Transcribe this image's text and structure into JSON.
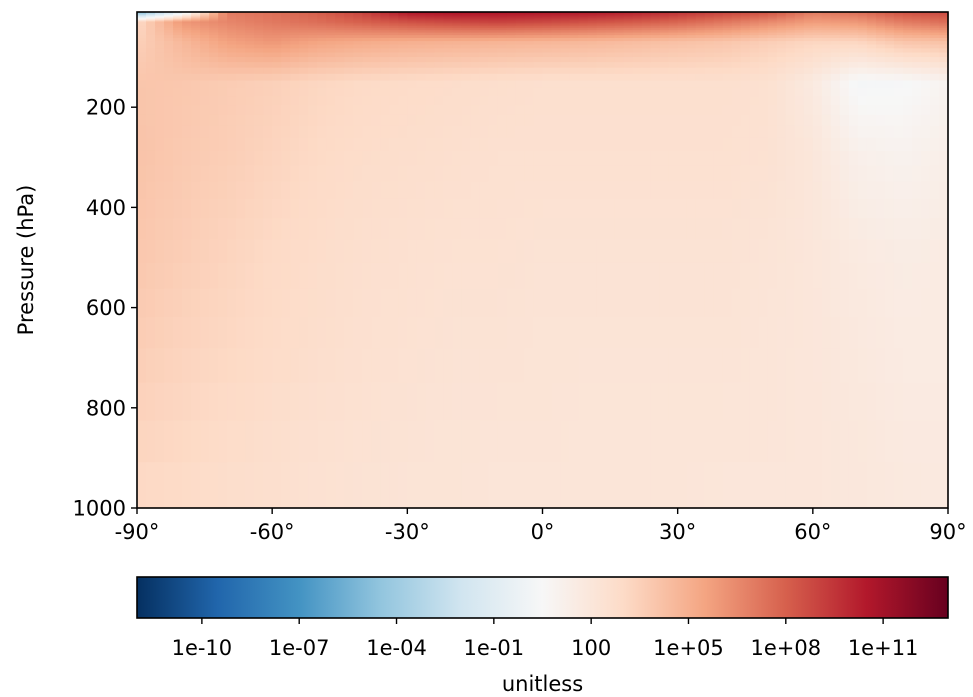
{
  "chart_data": {
    "type": "heatmap",
    "title": "",
    "xlabel": "",
    "ylabel": "Pressure (hPa)",
    "xlim": [
      -90,
      90
    ],
    "ylim": [
      1000,
      10
    ],
    "y_inverted": true,
    "x_ticks": [
      -90,
      -60,
      -30,
      0,
      30,
      60,
      90
    ],
    "x_tick_labels": [
      "-90°",
      "-60°",
      "-30°",
      "0°",
      "30°",
      "60°",
      "90°"
    ],
    "y_ticks": [
      200,
      400,
      600,
      800,
      1000
    ],
    "y_tick_labels": [
      "200",
      "400",
      "600",
      "800",
      "1000"
    ],
    "colormap": "RdBu_r",
    "color_scale": "log",
    "colorbar": {
      "label": "unitless",
      "orientation": "horizontal",
      "placement": "bottom",
      "range_log10": [
        -12,
        13
      ],
      "tick_values_log10": [
        -10,
        -7,
        -4,
        -1,
        2,
        5,
        8,
        11
      ],
      "tick_labels": [
        "1e-10",
        "1e-07",
        "1e-04",
        "1e-01",
        "100",
        "1e+05",
        "1e+08",
        "1e+11"
      ],
      "colors": [
        "#053061",
        "#2166ac",
        "#4393c3",
        "#92c5de",
        "#d1e5f0",
        "#f7f7f7",
        "#fddbc7",
        "#f4a582",
        "#d6604d",
        "#b2182b",
        "#67001f"
      ]
    },
    "latitude": [
      -90,
      -80,
      -70,
      -60,
      -50,
      -40,
      -30,
      -20,
      -10,
      0,
      10,
      20,
      30,
      40,
      50,
      60,
      70,
      80,
      90
    ],
    "pressure": [
      10,
      30,
      70,
      150,
      300,
      500,
      700,
      850,
      1000
    ],
    "log10_values": [
      [
        -5.5,
        -1.0,
        7.0,
        7.4,
        8.0,
        9.0,
        10.6,
        10.8,
        10.7,
        10.6,
        10.5,
        10.2,
        9.6,
        9.0,
        8.5,
        7.0,
        7.5,
        8.5,
        8.8
      ],
      [
        3.0,
        6.0,
        6.6,
        7.1,
        7.5,
        8.0,
        8.5,
        8.8,
        9.0,
        8.8,
        8.5,
        8.2,
        7.8,
        7.2,
        6.5,
        5.8,
        6.0,
        7.0,
        7.5
      ],
      [
        3.5,
        4.6,
        5.6,
        6.0,
        5.5,
        5.2,
        5.0,
        4.9,
        4.8,
        4.7,
        4.6,
        4.4,
        4.2,
        4.0,
        3.6,
        3.2,
        3.2,
        4.0,
        4.2
      ],
      [
        4.0,
        3.9,
        3.7,
        3.5,
        3.2,
        3.0,
        2.9,
        2.8,
        2.7,
        2.6,
        2.6,
        2.6,
        2.6,
        2.6,
        2.5,
        1.7,
        0.3,
        0.4,
        0.9
      ],
      [
        4.1,
        3.8,
        3.6,
        3.3,
        3.0,
        2.8,
        2.7,
        2.6,
        2.5,
        2.5,
        2.5,
        2.5,
        2.5,
        2.5,
        2.4,
        2.0,
        1.2,
        1.0,
        1.3
      ],
      [
        3.9,
        3.6,
        3.3,
        3.0,
        2.8,
        2.6,
        2.5,
        2.4,
        2.4,
        2.3,
        2.3,
        2.3,
        2.3,
        2.3,
        2.2,
        2.0,
        1.7,
        1.5,
        1.6
      ],
      [
        3.6,
        3.3,
        3.1,
        2.9,
        2.7,
        2.5,
        2.4,
        2.3,
        2.3,
        2.2,
        2.2,
        2.2,
        2.2,
        2.2,
        2.1,
        2.0,
        1.8,
        1.6,
        1.6
      ],
      [
        3.3,
        3.1,
        2.9,
        2.7,
        2.5,
        2.4,
        2.3,
        2.2,
        2.2,
        2.2,
        2.1,
        2.1,
        2.1,
        2.1,
        2.1,
        2.0,
        1.9,
        1.7,
        1.7
      ],
      [
        3.0,
        2.9,
        2.7,
        2.6,
        2.4,
        2.3,
        2.2,
        2.2,
        2.1,
        2.1,
        2.1,
        2.1,
        2.1,
        2.0,
        2.0,
        2.0,
        1.9,
        1.8,
        1.8
      ]
    ]
  }
}
